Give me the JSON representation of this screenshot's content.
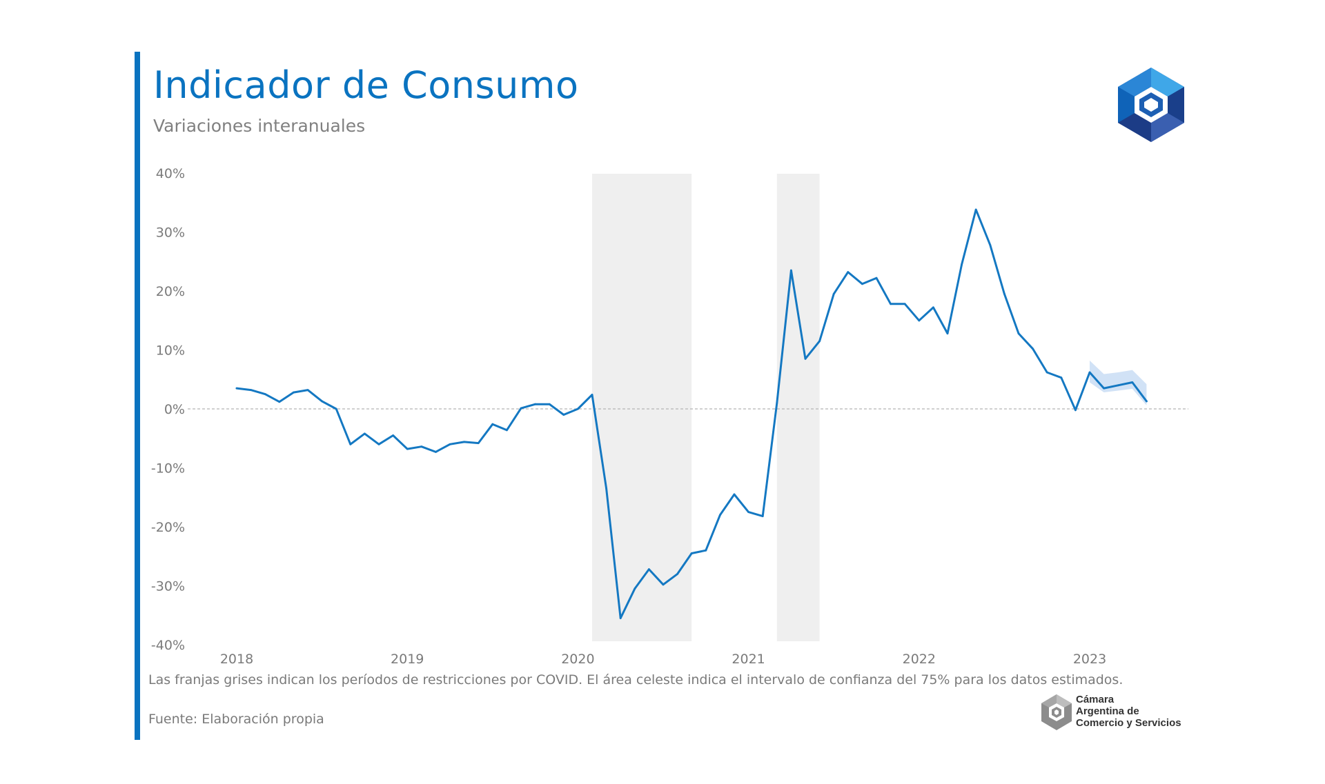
{
  "header": {
    "title": "Indicador de Consumo",
    "subtitle": "Variaciones interanuales"
  },
  "footer": {
    "caption": "Las franjas grises indican los períodos de restricciones por COVID. El área celeste indica el intervalo de confianza del 75% para los datos estimados.",
    "source": "Fuente: Elaboración propia"
  },
  "branding": {
    "org_lines": [
      "Cámara",
      "Argentina de",
      "Comercio y Servicios"
    ]
  },
  "colors": {
    "accent": "#0a73c0",
    "line": "#1478c2",
    "confidence": "#c9ddf4",
    "covid_band": "#efefef"
  },
  "chart_data": {
    "type": "line",
    "title": "Indicador de Consumo",
    "subtitle": "Variaciones interanuales",
    "xlabel": "",
    "ylabel": "",
    "ylim": [
      -40,
      40
    ],
    "y_ticks": [
      {
        "value": 40,
        "label": "40%"
      },
      {
        "value": 30,
        "label": "30%"
      },
      {
        "value": 20,
        "label": "20%"
      },
      {
        "value": 10,
        "label": "10%"
      },
      {
        "value": 0,
        "label": "0%"
      },
      {
        "value": -10,
        "label": "-10%"
      },
      {
        "value": -20,
        "label": "-20%"
      },
      {
        "value": -30,
        "label": "-30%"
      },
      {
        "value": -40,
        "label": "-40%"
      }
    ],
    "x_ticks": [
      "2018",
      "2019",
      "2020",
      "2021",
      "2022",
      "2023"
    ],
    "reference_line": 0,
    "grid": false,
    "covid_bands": [
      {
        "start": "2020-02",
        "end": "2020-09"
      },
      {
        "start": "2021-03",
        "end": "2021-06"
      }
    ],
    "series": [
      {
        "x": [
          "2018-01",
          "2018-02",
          "2018-03",
          "2018-04",
          "2018-05",
          "2018-06",
          "2018-07",
          "2018-08",
          "2018-09",
          "2018-10",
          "2018-11",
          "2018-12",
          "2019-01",
          "2019-02",
          "2019-03",
          "2019-04",
          "2019-05",
          "2019-06",
          "2019-07",
          "2019-08",
          "2019-09",
          "2019-10",
          "2019-11",
          "2019-12",
          "2020-01",
          "2020-02",
          "2020-03",
          "2020-04",
          "2020-05",
          "2020-06",
          "2020-07",
          "2020-08",
          "2020-09",
          "2020-10",
          "2020-11",
          "2020-12",
          "2021-01",
          "2021-02",
          "2021-03",
          "2021-04",
          "2021-05",
          "2021-06",
          "2021-07",
          "2021-08",
          "2021-09",
          "2021-10",
          "2021-11",
          "2021-12",
          "2022-01",
          "2022-02",
          "2022-03",
          "2022-04",
          "2022-05",
          "2022-06",
          "2022-07",
          "2022-08",
          "2022-09",
          "2022-10",
          "2022-11",
          "2022-12",
          "2023-01",
          "2023-02",
          "2023-03",
          "2023-04",
          "2023-05"
        ],
        "values": [
          3.5,
          3.2,
          2.5,
          1.2,
          2.8,
          3.2,
          1.3,
          0,
          -6,
          -4.2,
          -6,
          -4.5,
          -6.8,
          -6.4,
          -7.3,
          -6,
          -5.6,
          -5.8,
          -2.6,
          -3.6,
          0.1,
          0.8,
          0.8,
          -1,
          0,
          2.4,
          -13.5,
          -35.5,
          -30.5,
          -27.2,
          -29.8,
          -28,
          -24.5,
          -24,
          -18,
          -14.5,
          -17.5,
          -18.2,
          1,
          23.5,
          8.5,
          11.5,
          19.5,
          23.2,
          21.2,
          22.2,
          17.8,
          17.8,
          15,
          17.2,
          12.8,
          24.5,
          33.8,
          27.8,
          19.5,
          12.8,
          10.2,
          6.2,
          5.3,
          -0.2,
          6.2,
          3.5,
          4,
          4.5,
          1.3
        ]
      }
    ],
    "confidence_band_75": {
      "x": [
        "2023-01",
        "2023-02",
        "2023-03",
        "2023-04",
        "2023-05"
      ],
      "lower": [
        4.5,
        2.8,
        3.1,
        3.4,
        0.6
      ],
      "upper": [
        8.2,
        5.9,
        6.2,
        6.6,
        4.2
      ]
    }
  }
}
